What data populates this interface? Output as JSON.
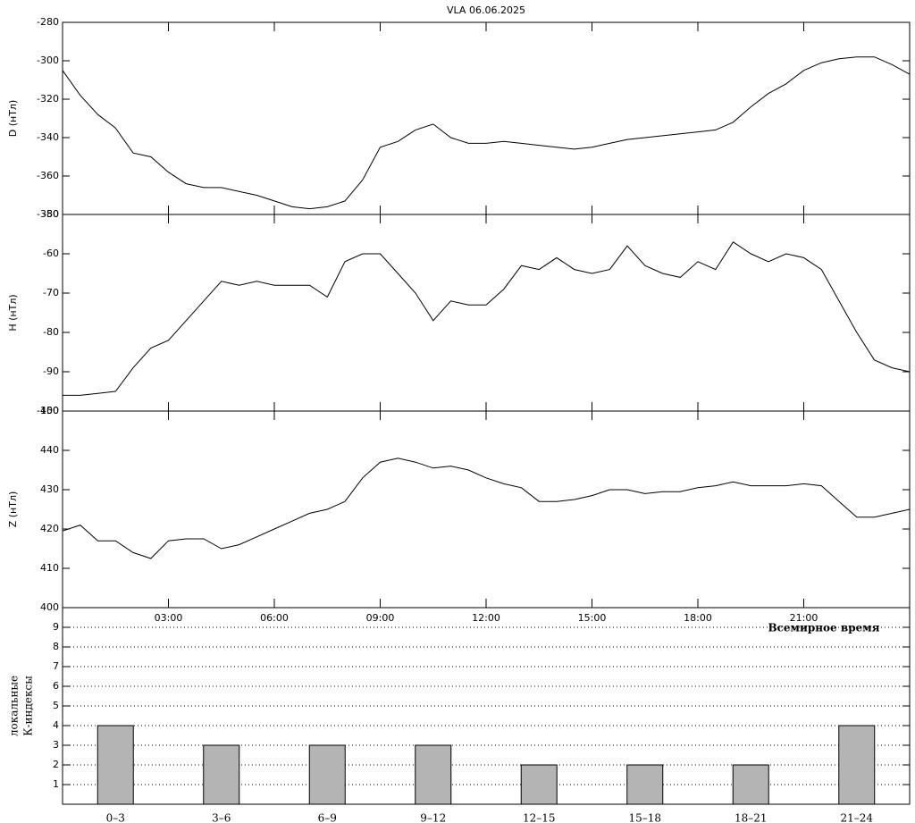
{
  "chart_data": [
    {
      "type": "line",
      "title": "VLA   06.06.2025",
      "ylabel": "D (нТл)",
      "color": "#000000",
      "x": [
        0,
        0.5,
        1,
        1.5,
        2,
        2.5,
        3,
        3.5,
        4,
        4.5,
        5,
        5.5,
        6,
        6.5,
        7,
        7.5,
        8,
        8.5,
        9,
        9.5,
        10,
        10.5,
        11,
        11.5,
        12,
        12.5,
        13,
        13.5,
        14,
        14.5,
        15,
        15.5,
        16,
        16.5,
        17,
        17.5,
        18,
        18.5,
        19,
        19.5,
        20,
        20.5,
        21,
        21.5,
        22,
        22.5,
        23,
        23.5,
        24
      ],
      "values": [
        -305,
        -318,
        -328,
        -335,
        -348,
        -350,
        -358,
        -364,
        -366,
        -366,
        -368,
        -370,
        -373,
        -376,
        -377,
        -376,
        -373,
        -362,
        -345,
        -342,
        -336,
        -333,
        -340,
        -343,
        -343,
        -342,
        -343,
        -344,
        -345,
        -346,
        -345,
        -343,
        -341,
        -340,
        -339,
        -338,
        -337,
        -336,
        -332,
        -324,
        -317,
        -312,
        -305,
        -301,
        -299,
        -298,
        -298,
        -302,
        -307
      ],
      "xlim": [
        0,
        24
      ],
      "ylim": [
        -380,
        -280
      ],
      "yticks": [
        -380,
        -360,
        -340,
        -320,
        -300,
        -280
      ]
    },
    {
      "type": "line",
      "ylabel": "H (нТл)",
      "color": "#000000",
      "x": [
        0,
        0.5,
        1,
        1.5,
        2,
        2.5,
        3,
        3.5,
        4,
        4.5,
        5,
        5.5,
        6,
        6.5,
        7,
        7.5,
        8,
        8.5,
        9,
        9.5,
        10,
        10.5,
        11,
        11.5,
        12,
        12.5,
        13,
        13.5,
        14,
        14.5,
        15,
        15.5,
        16,
        16.5,
        17,
        17.5,
        18,
        18.5,
        19,
        19.5,
        20,
        20.5,
        21,
        21.5,
        22,
        22.5,
        23,
        23.5,
        24
      ],
      "values": [
        -96,
        -96,
        -95.5,
        -95,
        -89,
        -84,
        -82,
        -77,
        -72,
        -67,
        -68,
        -67,
        -68,
        -68,
        -68,
        -71,
        -62,
        -60,
        -60,
        -65,
        -70,
        -77,
        -72,
        -73,
        -73,
        -69,
        -63,
        -64,
        -61,
        -64,
        -65,
        -64,
        -58,
        -63,
        -65,
        -66,
        -62,
        -64,
        -57,
        -60,
        -62,
        -60,
        -61,
        -64,
        -72,
        -80,
        -87,
        -89,
        -90
      ],
      "xlim": [
        0,
        24
      ],
      "ylim": [
        -100,
        -50
      ],
      "yticks": [
        -100,
        -90,
        -80,
        -70,
        -60,
        -50
      ]
    },
    {
      "type": "line",
      "ylabel": "Z (нТл)",
      "xlabel": "Всемирное время",
      "color": "#000000",
      "x": [
        0,
        0.5,
        1,
        1.5,
        2,
        2.5,
        3,
        3.5,
        4,
        4.5,
        5,
        5.5,
        6,
        6.5,
        7,
        7.5,
        8,
        8.5,
        9,
        9.5,
        10,
        10.5,
        11,
        11.5,
        12,
        12.5,
        13,
        13.5,
        14,
        14.5,
        15,
        15.5,
        16,
        16.5,
        17,
        17.5,
        18,
        18.5,
        19,
        19.5,
        20,
        20.5,
        21,
        21.5,
        22,
        22.5,
        23,
        23.5,
        24
      ],
      "values": [
        419.5,
        421,
        417,
        417,
        414,
        412.5,
        417,
        417.5,
        417.5,
        415,
        416,
        418,
        420,
        422,
        424,
        425,
        427,
        433,
        437,
        438,
        437,
        435.5,
        436,
        435,
        433,
        431.5,
        430.5,
        427,
        427,
        427.5,
        428.5,
        430,
        430,
        429,
        429.5,
        429.5,
        430.5,
        431,
        432,
        431,
        431,
        431,
        431.5,
        431,
        427,
        423,
        423,
        424,
        425
      ],
      "xlim": [
        0,
        24
      ],
      "ylim": [
        400,
        450
      ],
      "yticks": [
        400,
        410,
        420,
        430,
        440,
        450
      ],
      "xticks": [
        {
          "value": 3,
          "label": "03:00"
        },
        {
          "value": 6,
          "label": "06:00"
        },
        {
          "value": 9,
          "label": "09:00"
        },
        {
          "value": 12,
          "label": "12:00"
        },
        {
          "value": 15,
          "label": "15:00"
        },
        {
          "value": 18,
          "label": "18:00"
        },
        {
          "value": 21,
          "label": "21:00"
        }
      ]
    },
    {
      "type": "bar",
      "ylabel": [
        "локальные",
        "К-индексы"
      ],
      "color": "#b4b4b4",
      "categories": [
        "0–3",
        "3–6",
        "6–9",
        "9–12",
        "12–15",
        "15–18",
        "18–21",
        "21–24"
      ],
      "values": [
        4,
        3,
        3,
        3,
        2,
        2,
        2,
        4
      ],
      "ylim": [
        0,
        10
      ],
      "yticks": [
        1,
        2,
        3,
        4,
        5,
        6,
        7,
        8,
        9
      ],
      "grid": true
    }
  ]
}
